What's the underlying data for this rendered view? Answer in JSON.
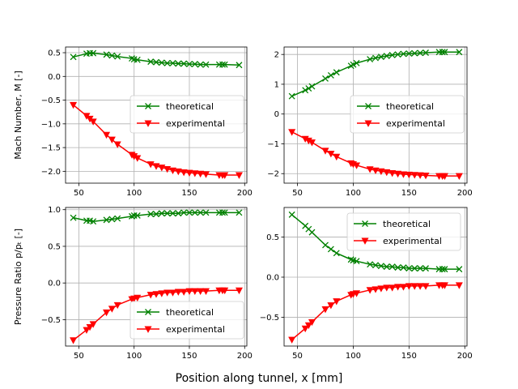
{
  "figure": {
    "xlabel": "Position along tunnel, x [mm]",
    "colors": {
      "theoretical": "#008000",
      "experimental": "#ff0000",
      "grid": "#b0b0b0"
    }
  },
  "chart_data": [
    {
      "type": "line",
      "panel": "top-left",
      "title": "",
      "xlabel": "",
      "ylabel": "Mach Number, M [-]",
      "xlim": [
        38,
        202
      ],
      "ylim": [
        -2.25,
        0.62
      ],
      "xticks": [
        50,
        100,
        150,
        200
      ],
      "xtick_labels": [
        "50",
        "100",
        "150",
        "200"
      ],
      "yticks": [
        0.5,
        0.0,
        -0.5,
        -1.0,
        -1.5,
        -2.0
      ],
      "ytick_labels": [
        "0.5",
        "0.0",
        "−0.5",
        "−1.0",
        "−1.5",
        "−2.0"
      ],
      "grid": true,
      "legend_position": "center-right",
      "series": [
        {
          "name": "theoretical",
          "marker": "x",
          "color": "#008000",
          "x": [
            45,
            57,
            60,
            63,
            75,
            80,
            85,
            98,
            100,
            103,
            115,
            120,
            125,
            130,
            135,
            140,
            145,
            150,
            155,
            160,
            165,
            177,
            180,
            182,
            195
          ],
          "y": [
            0.41,
            0.48,
            0.49,
            0.49,
            0.46,
            0.44,
            0.42,
            0.38,
            0.36,
            0.35,
            0.31,
            0.3,
            0.29,
            0.28,
            0.28,
            0.27,
            0.27,
            0.26,
            0.26,
            0.25,
            0.25,
            0.25,
            0.25,
            0.25,
            0.24
          ]
        },
        {
          "name": "experimental",
          "marker": "v",
          "color": "#ff0000",
          "x": [
            45,
            57,
            60,
            63,
            75,
            80,
            85,
            98,
            100,
            103,
            115,
            120,
            125,
            130,
            135,
            140,
            145,
            150,
            155,
            160,
            165,
            177,
            180,
            182,
            195
          ],
          "y": [
            -0.6,
            -0.83,
            -0.89,
            -0.95,
            -1.23,
            -1.33,
            -1.43,
            -1.65,
            -1.68,
            -1.72,
            -1.85,
            -1.89,
            -1.92,
            -1.95,
            -1.98,
            -2.0,
            -2.02,
            -2.03,
            -2.04,
            -2.05,
            -2.06,
            -2.08,
            -2.08,
            -2.08,
            -2.08
          ]
        }
      ]
    },
    {
      "type": "line",
      "panel": "top-right",
      "title": "",
      "xlabel": "",
      "ylabel": "",
      "xlim": [
        38,
        202
      ],
      "ylim": [
        -2.32,
        2.25
      ],
      "xticks": [
        50,
        100,
        150,
        200
      ],
      "xtick_labels": [
        "50",
        "100",
        "150",
        "200"
      ],
      "yticks": [
        2,
        1,
        0,
        -1,
        -2
      ],
      "ytick_labels": [
        "2",
        "1",
        "0",
        "−1",
        "−2"
      ],
      "grid": true,
      "legend_position": "center-right",
      "series": [
        {
          "name": "theoretical",
          "marker": "x",
          "color": "#008000",
          "x": [
            45,
            57,
            60,
            63,
            75,
            80,
            85,
            98,
            100,
            103,
            115,
            120,
            125,
            130,
            135,
            140,
            145,
            150,
            155,
            160,
            165,
            177,
            180,
            182,
            195
          ],
          "y": [
            0.6,
            0.8,
            0.86,
            0.93,
            1.19,
            1.3,
            1.4,
            1.62,
            1.66,
            1.71,
            1.84,
            1.88,
            1.92,
            1.95,
            1.98,
            2.0,
            2.02,
            2.03,
            2.04,
            2.05,
            2.06,
            2.08,
            2.08,
            2.08,
            2.08
          ]
        },
        {
          "name": "experimental",
          "marker": "v",
          "color": "#ff0000",
          "x": [
            45,
            57,
            60,
            63,
            75,
            80,
            85,
            98,
            100,
            103,
            115,
            120,
            125,
            130,
            135,
            140,
            145,
            150,
            155,
            160,
            165,
            177,
            180,
            182,
            195
          ],
          "y": [
            -0.6,
            -0.83,
            -0.89,
            -0.95,
            -1.23,
            -1.33,
            -1.43,
            -1.65,
            -1.68,
            -1.72,
            -1.85,
            -1.89,
            -1.92,
            -1.95,
            -1.98,
            -2.0,
            -2.02,
            -2.03,
            -2.04,
            -2.05,
            -2.06,
            -2.08,
            -2.08,
            -2.08,
            -2.08
          ]
        }
      ]
    },
    {
      "type": "line",
      "panel": "bottom-left",
      "title": "",
      "xlabel": "",
      "ylabel": "Pressure Ratio p/pₜ [-]",
      "xlim": [
        38,
        202
      ],
      "ylim": [
        -0.86,
        1.03
      ],
      "xticks": [
        50,
        100,
        150,
        200
      ],
      "xtick_labels": [
        "50",
        "100",
        "150",
        "200"
      ],
      "yticks": [
        1.0,
        0.5,
        0.0,
        -0.5
      ],
      "ytick_labels": [
        "1.0",
        "0.5",
        "0.0",
        "−0.5"
      ],
      "grid": true,
      "legend_position": "lower-right",
      "series": [
        {
          "name": "theoretical",
          "marker": "x",
          "color": "#008000",
          "x": [
            45,
            57,
            60,
            63,
            75,
            80,
            85,
            98,
            100,
            103,
            115,
            120,
            125,
            130,
            135,
            140,
            145,
            150,
            155,
            160,
            165,
            177,
            180,
            182,
            195
          ],
          "y": [
            0.89,
            0.85,
            0.85,
            0.84,
            0.86,
            0.87,
            0.88,
            0.91,
            0.92,
            0.92,
            0.94,
            0.94,
            0.95,
            0.95,
            0.95,
            0.95,
            0.96,
            0.96,
            0.96,
            0.96,
            0.96,
            0.96,
            0.96,
            0.96,
            0.96
          ]
        },
        {
          "name": "experimental",
          "marker": "v",
          "color": "#ff0000",
          "x": [
            45,
            57,
            60,
            63,
            75,
            80,
            85,
            98,
            100,
            103,
            115,
            120,
            125,
            130,
            135,
            140,
            145,
            150,
            155,
            160,
            165,
            177,
            180,
            182,
            195
          ],
          "y": [
            -0.78,
            -0.64,
            -0.6,
            -0.56,
            -0.4,
            -0.35,
            -0.3,
            -0.22,
            -0.21,
            -0.2,
            -0.16,
            -0.15,
            -0.14,
            -0.13,
            -0.13,
            -0.12,
            -0.12,
            -0.11,
            -0.11,
            -0.11,
            -0.11,
            -0.1,
            -0.1,
            -0.1,
            -0.1
          ]
        }
      ]
    },
    {
      "type": "line",
      "panel": "bottom-right",
      "title": "",
      "xlabel": "",
      "ylabel": "",
      "xlim": [
        38,
        202
      ],
      "ylim": [
        -0.86,
        0.87
      ],
      "xticks": [
        50,
        100,
        150,
        200
      ],
      "xtick_labels": [
        "50",
        "100",
        "150",
        "200"
      ],
      "yticks": [
        0.5,
        0.0,
        -0.5
      ],
      "ytick_labels": [
        "0.5",
        "0.0",
        "−0.5"
      ],
      "grid": true,
      "legend_position": "top-right",
      "series": [
        {
          "name": "theoretical",
          "marker": "x",
          "color": "#008000",
          "x": [
            45,
            57,
            60,
            63,
            75,
            80,
            85,
            98,
            100,
            103,
            115,
            120,
            125,
            130,
            135,
            140,
            145,
            150,
            155,
            160,
            165,
            177,
            180,
            182,
            195
          ],
          "y": [
            0.78,
            0.64,
            0.6,
            0.56,
            0.4,
            0.35,
            0.3,
            0.22,
            0.21,
            0.2,
            0.16,
            0.15,
            0.14,
            0.13,
            0.13,
            0.12,
            0.12,
            0.11,
            0.11,
            0.11,
            0.11,
            0.1,
            0.1,
            0.1,
            0.1
          ]
        },
        {
          "name": "experimental",
          "marker": "v",
          "color": "#ff0000",
          "x": [
            45,
            57,
            60,
            63,
            75,
            80,
            85,
            98,
            100,
            103,
            115,
            120,
            125,
            130,
            135,
            140,
            145,
            150,
            155,
            160,
            165,
            177,
            180,
            182,
            195
          ],
          "y": [
            -0.78,
            -0.64,
            -0.6,
            -0.56,
            -0.4,
            -0.35,
            -0.3,
            -0.22,
            -0.21,
            -0.2,
            -0.16,
            -0.15,
            -0.14,
            -0.13,
            -0.13,
            -0.12,
            -0.12,
            -0.11,
            -0.11,
            -0.11,
            -0.11,
            -0.1,
            -0.1,
            -0.1,
            -0.1
          ]
        }
      ]
    }
  ]
}
